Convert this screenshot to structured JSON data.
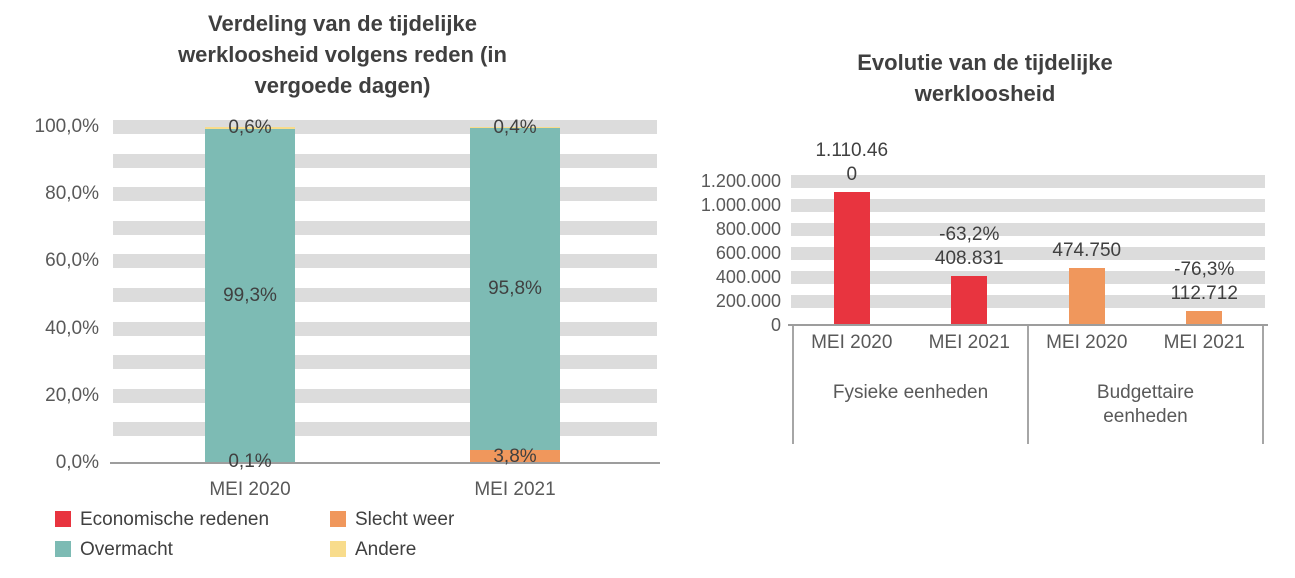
{
  "chart_data": [
    {
      "type": "bar",
      "subtype": "100%-stacked-column",
      "title": "Verdeling van de tijdelijke werkloosheid volgens reden (in vergoede dagen)",
      "title_display": "Verdeling van de tijdelijke\nwerkloosheid volgens reden (in\nvergoede dagen)",
      "categories": [
        "MEI 2020",
        "MEI 2021"
      ],
      "series": [
        {
          "name": "Economische redenen",
          "color": "#E8343F",
          "values": [
            0.1,
            0.0
          ]
        },
        {
          "name": "Slecht weer",
          "color": "#F0975C",
          "values": [
            0.0,
            3.8
          ]
        },
        {
          "name": "Overmacht",
          "color": "#7DBBB4",
          "values": [
            99.3,
            95.8
          ]
        },
        {
          "name": "Andere",
          "color": "#F8DC8C",
          "values": [
            0.6,
            0.4
          ]
        }
      ],
      "ylim": [
        0,
        100
      ],
      "y_ticks": [
        "100,0%",
        "80,0%",
        "60,0%",
        "40,0%",
        "20,0%",
        "0,0%"
      ],
      "grid": "horizontal-bands",
      "legend_position": "bottom",
      "data_labels": [
        {
          "category": "MEI 2020",
          "labels": [
            {
              "text": "0,6%",
              "position_pct": 99.7
            },
            {
              "text": "99,3%",
              "position_pct": 49.8
            },
            {
              "text": "0,1%",
              "position_pct": 0.3
            }
          ]
        },
        {
          "category": "MEI 2021",
          "labels": [
            {
              "text": "0,4%",
              "position_pct": 99.8
            },
            {
              "text": "95,8%",
              "position_pct": 51.7
            },
            {
              "text": "3,8%",
              "position_pct": 1.9
            }
          ]
        }
      ]
    },
    {
      "type": "bar",
      "subtype": "grouped-column",
      "title": "Evolutie van de tijdelijke werkloosheid",
      "title_display": "Evolutie van de tijdelijke\nwerkloosheid",
      "ylim": [
        0,
        1200000
      ],
      "y_ticks": [
        "1.200.000",
        "1.000.000",
        "800.000",
        "600.000",
        "400.000",
        "200.000",
        "0"
      ],
      "grid": "horizontal-bands",
      "groups": [
        {
          "label": "Fysieke eenheden",
          "label_display": "Fysieke eenheden",
          "bars": [
            {
              "category": "MEI 2020",
              "value": 1110460,
              "color": "#E8343F",
              "label_display": "1.110.46\n0"
            },
            {
              "category": "MEI 2021",
              "value": 408831,
              "color": "#E8343F",
              "label_display": "-63,2%\n408.831"
            }
          ]
        },
        {
          "label": "Budgettaire eenheden",
          "label_display": "Budgettaire\neenheden",
          "bars": [
            {
              "category": "MEI 2020",
              "value": 474750,
              "color": "#F0975C",
              "label_display": "474.750"
            },
            {
              "category": "MEI 2021",
              "value": 112712,
              "color": "#F0975C",
              "label_display": "-76,3%\n112.712"
            }
          ]
        }
      ]
    }
  ]
}
